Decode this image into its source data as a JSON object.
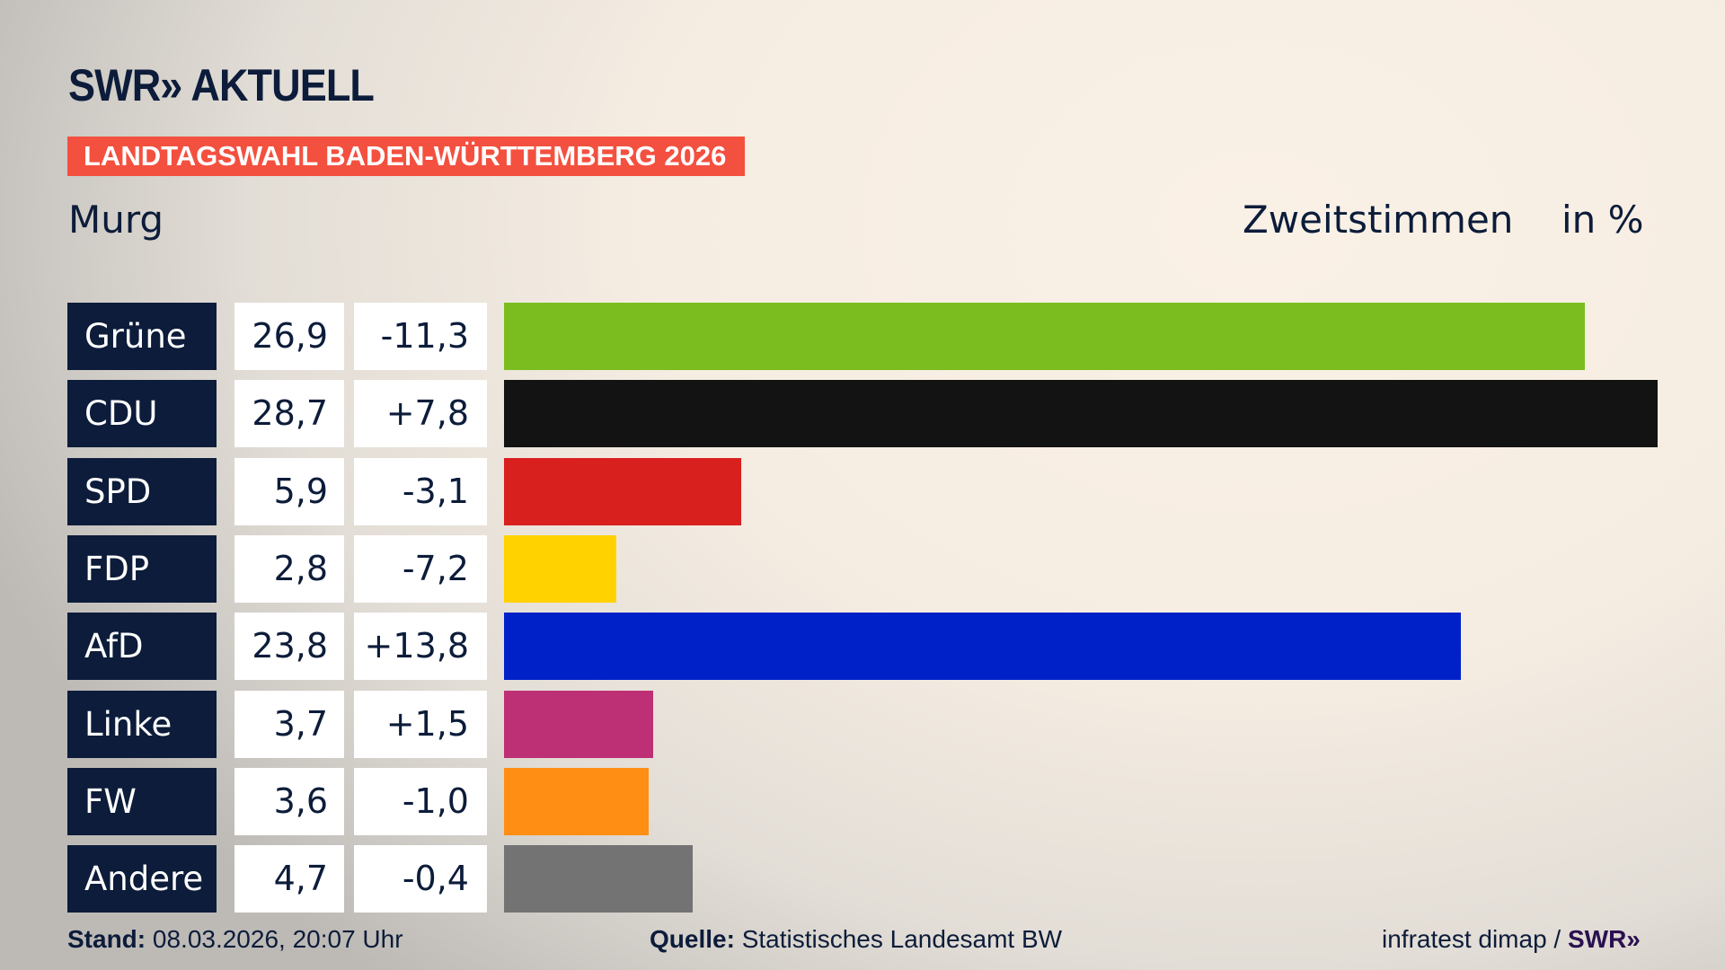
{
  "header": {
    "logo": "SWR» AKTUELL",
    "banner": "LANDTAGSWAHL BADEN-WÜRTTEMBERG 2026",
    "region": "Murg",
    "measure": "Zweitstimmen",
    "unit": "in %"
  },
  "chart_data": {
    "type": "bar",
    "orientation": "horizontal",
    "categories": [
      "Grüne",
      "CDU",
      "SPD",
      "FDP",
      "AfD",
      "Linke",
      "FW",
      "Andere"
    ],
    "values": [
      26.9,
      28.7,
      5.9,
      2.8,
      23.8,
      3.7,
      3.6,
      4.7
    ],
    "value_labels": [
      "26,9",
      "28,7",
      "5,9",
      "2,8",
      "23,8",
      "3,7",
      "3,6",
      "4,7"
    ],
    "diff_labels": [
      "-11,3",
      "+7,8",
      "-3,1",
      "-7,2",
      "+13,8",
      "+1,5",
      "-1,0",
      "-0,4"
    ],
    "colors": [
      "#7bbd1e",
      "#131313",
      "#d8201f",
      "#ffd200",
      "#0021c8",
      "#be3075",
      "#ff8e15",
      "#737373"
    ],
    "xlim": [
      0,
      28.7
    ]
  },
  "footer": {
    "stand_label": "Stand:",
    "stand_value": "08.03.2026, 20:07 Uhr",
    "source_label": "Quelle:",
    "source_value": "Statistisches Landesamt BW",
    "credit": "infratest dimap /",
    "credit_logo": "SWR»"
  }
}
